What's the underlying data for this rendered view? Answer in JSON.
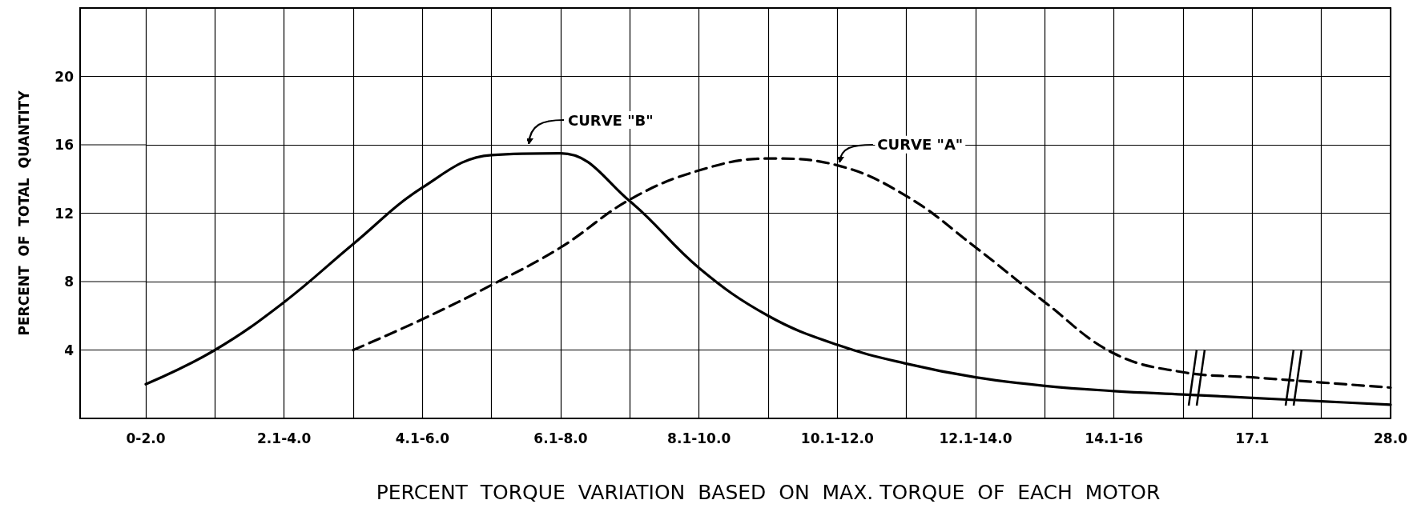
{
  "chart_data": {
    "type": "line",
    "xlabel": "PERCENT  TORQUE  VARIATION  BASED  ON  MAX. TORQUE  OF  EACH  MOTOR",
    "ylabel": "PERCENT  OF  TOTAL  QUANTITY",
    "categories": [
      "0-2.0",
      null,
      "2.1-4.0",
      null,
      "4.1-6.0",
      null,
      "6.1-8.0",
      null,
      "8.1-10.0",
      null,
      "10.1-12.0",
      null,
      "12.1-14.0",
      null,
      "14.1-16",
      null,
      "17.1",
      null,
      "28.0"
    ],
    "series": [
      {
        "color": "#000000",
        "line_style": "solid",
        "values": [
          2.0,
          4.0,
          6.8,
          10.2,
          13.5,
          15.4,
          15.5,
          12.7,
          8.8,
          6.0,
          4.3,
          3.2,
          2.4,
          1.9,
          1.6,
          1.4,
          1.2,
          1.0,
          0.8
        ]
      },
      {
        "color": "#000000",
        "line_style": "dashed",
        "values": [
          null,
          null,
          null,
          4.0,
          5.8,
          7.8,
          10.0,
          12.8,
          14.5,
          15.2,
          14.8,
          13.0,
          10.0,
          6.8,
          3.8,
          2.7,
          2.4,
          2.1,
          1.8
        ]
      }
    ],
    "ylim": [
      0,
      24
    ],
    "yticks": [
      {
        "value": 0,
        "label": null
      },
      4,
      8,
      12,
      16,
      20,
      {
        "value": 24,
        "label": null
      }
    ],
    "grid": true,
    "marker": "none",
    "annotations": [
      "CURVE \"B\"",
      {
        "text": "CURVE \"A\"",
        "x": "10.1-12.0",
        "y": 14.8
      }
    ]
  }
}
